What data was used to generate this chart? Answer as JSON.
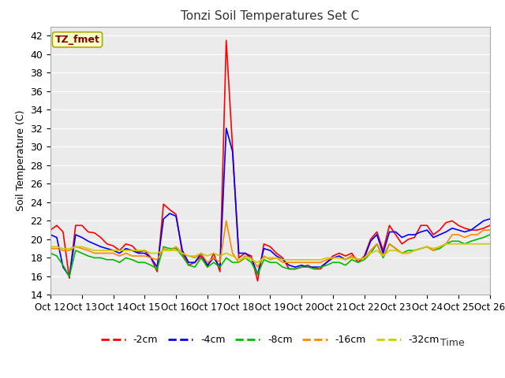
{
  "title": "Tonzi Soil Temperatures Set C",
  "xlabel": "Time",
  "ylabel": "Soil Temperature (C)",
  "ylim": [
    14,
    43
  ],
  "yticks": [
    14,
    16,
    18,
    20,
    22,
    24,
    26,
    28,
    30,
    32,
    34,
    36,
    38,
    40,
    42
  ],
  "annotation_text": "TZ_fmet",
  "annotation_bg": "#ffffcc",
  "annotation_border": "#aaaa00",
  "annotation_color": "#880000",
  "bg_color": "#e8e8e8",
  "plot_bg": "#ebebeb",
  "legend_labels": [
    "-2cm",
    "-4cm",
    "-8cm",
    "-16cm",
    "-32cm"
  ],
  "colors": [
    "#ff0000",
    "#0000ff",
    "#00bb00",
    "#ff8800",
    "#cccc00"
  ],
  "x_tick_labels": [
    "Oct 12",
    "Oct 13",
    "Oct 14",
    "Oct 15",
    "Oct 16",
    "Oct 17",
    "Oct 18",
    "Oct 19",
    "Oct 20",
    "Oct 21",
    "Oct 22",
    "Oct 23",
    "Oct 24",
    "Oct 25",
    "Oct 26"
  ],
  "series": {
    "neg2cm": [
      21.0,
      21.5,
      20.8,
      15.8,
      21.5,
      21.5,
      20.8,
      20.7,
      20.2,
      19.5,
      19.3,
      18.8,
      19.5,
      19.3,
      18.6,
      18.8,
      18.0,
      16.5,
      23.8,
      23.2,
      22.7,
      18.5,
      17.2,
      17.5,
      18.2,
      17.0,
      18.5,
      16.5,
      41.5,
      30.0,
      18.0,
      18.5,
      18.2,
      15.5,
      19.5,
      19.2,
      18.5,
      18.0,
      16.8,
      16.8,
      17.0,
      17.2,
      16.8,
      16.8,
      17.5,
      18.2,
      18.5,
      18.2,
      18.5,
      17.5,
      18.2,
      20.0,
      20.8,
      18.8,
      21.5,
      20.5,
      19.5,
      20.0,
      20.2,
      21.5,
      21.5,
      20.5,
      21.0,
      21.8,
      22.0,
      21.5,
      21.2,
      21.0,
      21.0,
      21.2,
      21.5
    ],
    "neg4cm": [
      20.5,
      20.2,
      17.0,
      16.0,
      20.5,
      20.2,
      19.8,
      19.5,
      19.2,
      19.0,
      18.8,
      18.5,
      19.0,
      18.8,
      18.5,
      18.5,
      18.0,
      17.0,
      22.2,
      22.8,
      22.5,
      18.8,
      17.5,
      17.5,
      18.5,
      17.2,
      18.0,
      17.0,
      32.0,
      29.5,
      18.5,
      18.5,
      18.0,
      16.2,
      19.0,
      18.8,
      18.2,
      17.8,
      17.2,
      17.0,
      17.2,
      17.0,
      17.0,
      17.0,
      17.5,
      18.0,
      18.2,
      17.8,
      18.2,
      17.8,
      18.0,
      19.8,
      20.5,
      18.5,
      20.8,
      20.8,
      20.2,
      20.5,
      20.5,
      20.8,
      21.0,
      20.2,
      20.5,
      20.8,
      21.2,
      21.0,
      20.8,
      21.0,
      21.5,
      22.0,
      22.2
    ],
    "neg8cm": [
      18.5,
      18.2,
      17.2,
      16.0,
      18.8,
      18.5,
      18.2,
      18.0,
      18.0,
      17.8,
      17.8,
      17.5,
      18.0,
      17.8,
      17.5,
      17.5,
      17.2,
      16.8,
      19.2,
      19.0,
      19.0,
      18.2,
      17.2,
      17.0,
      18.0,
      17.0,
      17.5,
      17.0,
      18.0,
      17.5,
      17.5,
      18.0,
      17.5,
      16.2,
      17.8,
      17.5,
      17.5,
      17.0,
      16.8,
      16.8,
      17.0,
      17.0,
      16.8,
      17.0,
      17.2,
      17.5,
      17.5,
      17.2,
      17.8,
      17.5,
      17.8,
      18.5,
      19.5,
      18.0,
      19.5,
      19.0,
      18.5,
      18.8,
      18.8,
      19.0,
      19.2,
      18.8,
      19.0,
      19.5,
      19.8,
      19.8,
      19.5,
      19.8,
      20.0,
      20.2,
      20.5
    ],
    "neg16cm": [
      19.0,
      19.0,
      18.8,
      18.8,
      19.2,
      19.0,
      18.8,
      18.5,
      18.5,
      18.5,
      18.5,
      18.2,
      18.5,
      18.2,
      18.2,
      18.2,
      18.0,
      17.8,
      19.0,
      18.8,
      19.2,
      18.5,
      18.2,
      18.0,
      18.5,
      17.5,
      18.0,
      17.5,
      22.0,
      18.5,
      17.5,
      18.2,
      18.0,
      17.0,
      18.2,
      17.8,
      18.0,
      17.5,
      17.5,
      17.5,
      17.5,
      17.5,
      17.5,
      17.5,
      17.8,
      18.0,
      18.0,
      17.8,
      18.2,
      17.8,
      18.0,
      18.8,
      19.5,
      18.2,
      19.5,
      19.0,
      18.5,
      18.5,
      18.8,
      19.0,
      19.2,
      18.8,
      19.2,
      19.5,
      20.5,
      20.5,
      20.2,
      20.5,
      20.5,
      21.0,
      21.0
    ],
    "neg32cm": [
      19.2,
      19.2,
      19.0,
      19.0,
      19.2,
      19.2,
      19.0,
      18.8,
      18.8,
      18.8,
      18.8,
      18.8,
      18.8,
      18.8,
      18.8,
      18.8,
      18.5,
      18.5,
      18.8,
      18.8,
      18.8,
      18.5,
      18.2,
      18.2,
      18.5,
      18.2,
      18.5,
      18.2,
      18.5,
      18.2,
      17.8,
      18.0,
      17.8,
      17.5,
      18.0,
      18.0,
      18.0,
      17.8,
      17.8,
      17.8,
      17.8,
      17.8,
      17.8,
      17.8,
      18.0,
      18.0,
      18.0,
      17.8,
      18.0,
      17.8,
      18.0,
      18.5,
      18.8,
      18.2,
      18.8,
      18.8,
      18.5,
      18.5,
      18.8,
      19.0,
      19.2,
      19.0,
      19.2,
      19.5,
      19.5,
      19.5,
      19.5,
      19.5,
      19.5,
      19.5,
      19.5
    ]
  },
  "n_points": 71,
  "x_tick_positions": [
    0,
    5,
    10,
    15,
    20,
    25,
    30,
    35,
    40,
    45,
    50,
    55,
    60,
    65,
    70
  ]
}
